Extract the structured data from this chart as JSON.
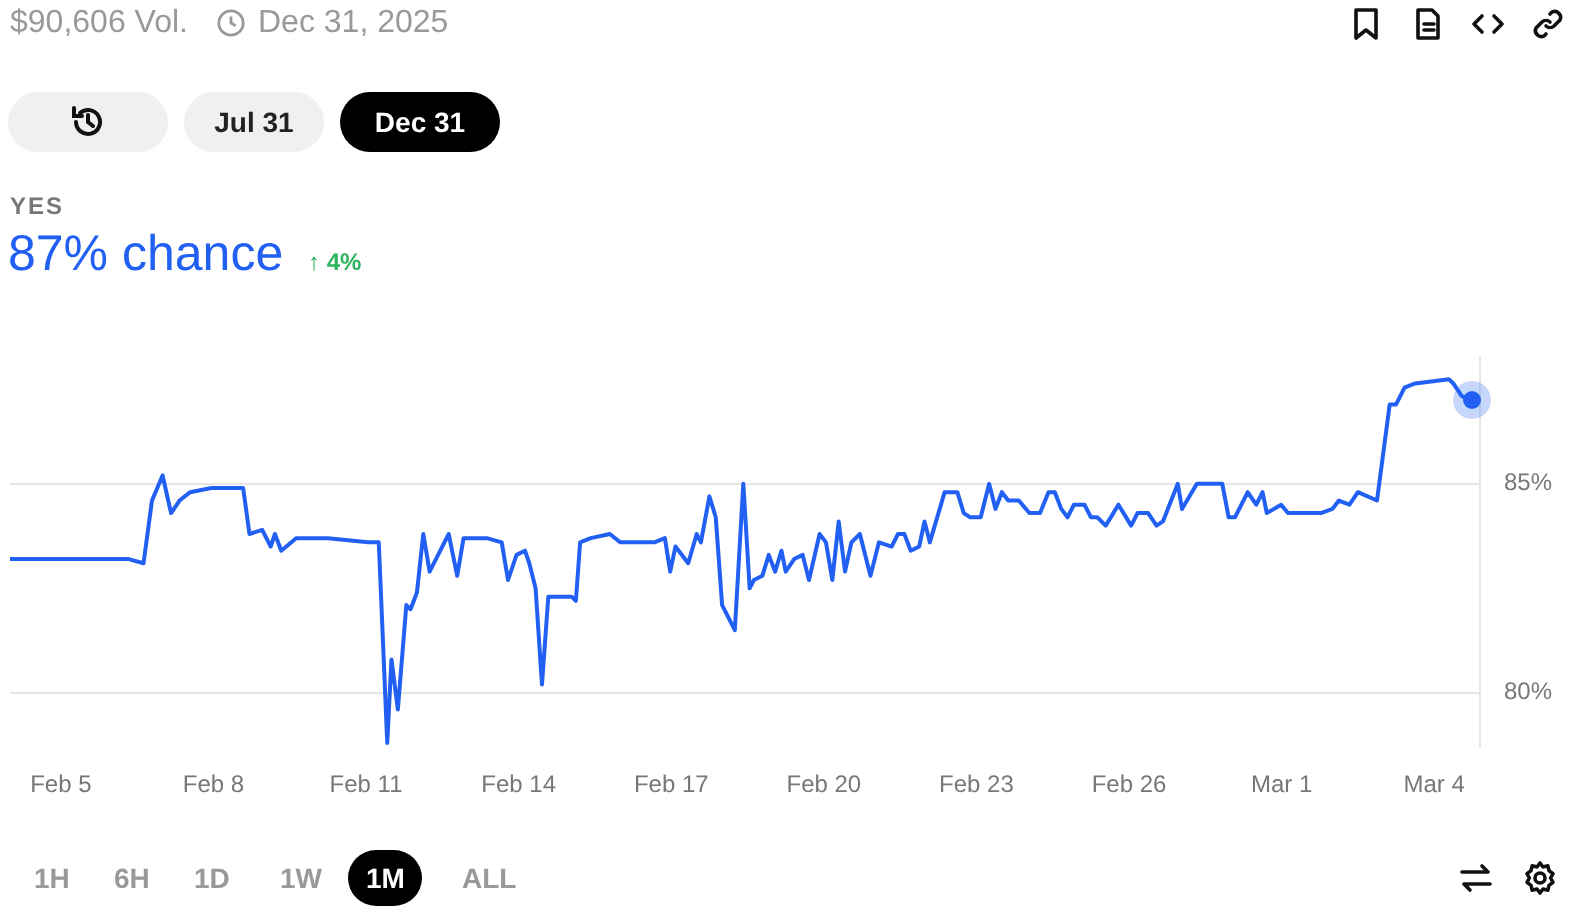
{
  "chart_data": {
    "type": "line",
    "title": "87% chance",
    "subtitle": "YES",
    "annotations": [
      "$90,606 Vol.",
      "Dec 31, 2025",
      "Jul 31",
      "Dec 31",
      "↑ 4%",
      "1H",
      "6H",
      "1D",
      "1W",
      "1M",
      "ALL"
    ],
    "x": [
      "--02-04T00:00",
      "--02-06T08:00",
      "--02-06T15:00",
      "--02-06T19:00",
      "--02-07T00:00",
      "--02-07T04:00",
      "--02-07T08:00",
      "--02-07T13:00",
      "--02-07T23:00",
      "--02-08T14:00",
      "--02-08T17:00",
      "--02-08T23:00",
      "--02-09T03:00",
      "--02-09T05:00",
      "--02-09T08:00",
      "--02-09T15:00",
      "--02-10T06:00",
      "--02-11T01:00",
      "--02-11T06:00",
      "--02-11T10:00",
      "--02-11T12:00",
      "--02-11T15:00",
      "--02-11T19:00",
      "--02-11T21:00",
      "--02-12T00:00",
      "--02-12T03:00",
      "--02-12T06:00",
      "--02-12T10:00",
      "--02-12T15:00",
      "--02-12T19:00",
      "--02-12T22:00",
      "--02-13T09:00",
      "--02-13T16:00",
      "--02-13T19:00",
      "--02-13T23:00",
      "--02-14T03:00",
      "--02-14T05:00",
      "--02-14T08:00",
      "--02-14T11:00",
      "--02-14T14:00",
      "--02-15T01:00",
      "--02-15T03:00",
      "--02-15T05:00",
      "--02-15T10:00",
      "--02-15T19:00",
      "--02-16T00:00",
      "--02-16T07:00",
      "--02-16T16:00",
      "--02-16T21:00",
      "--02-16T23:30",
      "--02-17T02:00",
      "--02-17T08:00",
      "--02-17T12:00",
      "--02-17T14:00",
      "--02-17T18:00",
      "--02-17T21:00",
      "--02-18T00:00",
      "--02-18T06:00",
      "--02-18T10:00",
      "--02-18T13:00",
      "--02-18T15:00",
      "--02-18T19:00",
      "--02-18T22:00",
      "--02-19T01:00",
      "--02-19T04:00",
      "--02-19T06:00",
      "--02-19T10:00",
      "--02-19T14:00",
      "--02-19T17:00",
      "--02-19T22:00",
      "--02-20T01:00",
      "--02-20T04:00",
      "--02-20T07:00",
      "--02-20T10:00",
      "--02-20T13:00",
      "--02-20T17:00",
      "--02-20T19:00",
      "--02-20T22:00",
      "--02-21T02:00",
      "--02-21T08:00",
      "--02-21T11:00",
      "--02-21T14:00",
      "--02-21T17:00",
      "--02-21T21:00",
      "--02-21T23:30",
      "--02-22T02:00",
      "--02-22T09:00",
      "--02-22T12:00",
      "--02-22T15:00",
      "--02-22T18:00",
      "--02-22T21:00",
      "--02-23T02:00",
      "--02-23T06:00",
      "--02-23T09:00",
      "--02-23T12:00",
      "--02-23T15:00",
      "--02-23T20:00",
      "--02-24T01:00",
      "--02-24T06:00",
      "--02-24T10:00",
      "--02-24T13:00",
      "--02-24T16:00",
      "--02-24T19:00",
      "--02-24T22:00",
      "--02-25T03:00",
      "--02-25T06:00",
      "--02-25T09:00",
      "--02-25T13:00",
      "--02-25T19:00",
      "--02-26T01:00",
      "--02-26T04:00",
      "--02-26T09:00",
      "--02-26T13:00",
      "--02-26T16:00",
      "--02-26T23:00",
      "--02-27T01:00",
      "--02-27T08:00",
      "--02-27T13:00",
      "--02-27T20:00",
      "--02-27T23:00",
      "--02-28T02:00",
      "--02-28T08:00",
      "--02-28T12:00",
      "--02-28T15:00",
      "--02-28T17:00",
      "--02-28T23:45",
      "--03-01T03:00",
      "--03-01T09:00",
      "--03-01T18:30",
      "--03-02T00:00",
      "--03-02T03:00",
      "--03-02T08:00",
      "--03-02T12:00",
      "--03-02T21:00",
      "--03-03T03:00",
      "--03-03T06:00",
      "--03-03T10:00",
      "--03-03T15:00",
      "--03-04T07:00",
      "--03-04T09:00",
      "--03-04T13:00",
      "--03-04T18:00"
    ],
    "series": [
      {
        "color": "#2160f3",
        "values": [
          83.2,
          83.2,
          83.1,
          84.6,
          85.2,
          84.3,
          84.6,
          84.8,
          84.9,
          84.9,
          83.8,
          83.9,
          83.5,
          83.8,
          83.4,
          83.7,
          83.7,
          83.6,
          83.6,
          78.8,
          80.8,
          79.6,
          82.1,
          82.0,
          82.4,
          83.8,
          82.9,
          83.3,
          83.8,
          82.8,
          83.7,
          83.7,
          83.6,
          82.7,
          83.3,
          83.4,
          83.1,
          82.5,
          80.2,
          82.3,
          82.3,
          82.2,
          83.6,
          83.7,
          83.8,
          83.6,
          83.6,
          83.6,
          83.7,
          82.9,
          83.5,
          83.1,
          83.8,
          83.6,
          84.7,
          84.2,
          82.1,
          81.5,
          85.0,
          82.5,
          82.7,
          82.8,
          83.3,
          82.9,
          83.4,
          82.9,
          83.2,
          83.3,
          82.7,
          83.8,
          83.6,
          82.7,
          84.1,
          82.9,
          83.6,
          83.8,
          83.4,
          82.8,
          83.6,
          83.5,
          83.8,
          83.8,
          83.4,
          83.5,
          84.1,
          83.6,
          84.8,
          84.8,
          84.8,
          84.3,
          84.2,
          84.2,
          85.0,
          84.4,
          84.8,
          84.6,
          84.6,
          84.3,
          84.3,
          84.8,
          84.8,
          84.4,
          84.2,
          84.5,
          84.5,
          84.2,
          84.2,
          84.0,
          84.5,
          84.0,
          84.3,
          84.3,
          84.0,
          84.1,
          85.0,
          84.4,
          85.0,
          85.0,
          85.0,
          84.2,
          84.2,
          84.8,
          84.5,
          84.8,
          84.3,
          84.5,
          84.3,
          84.3,
          84.3,
          84.4,
          84.6,
          84.5,
          84.8,
          84.6,
          86.9,
          86.9,
          87.3,
          87.4,
          87.5,
          87.4,
          87.1,
          87.0
        ]
      }
    ],
    "xlim": [
      "--02-04T00:00",
      "--03-04T21:36"
    ],
    "xticks": [
      {
        "value": "--02-05",
        "label": "Feb 5"
      },
      {
        "value": "--02-08",
        "label": "Feb 8"
      },
      {
        "value": "--02-11",
        "label": "Feb 11"
      },
      {
        "value": "--02-14",
        "label": "Feb 14"
      },
      {
        "value": "--02-17",
        "label": "Feb 17"
      },
      {
        "value": "--02-20",
        "label": "Feb 20"
      },
      {
        "value": "--02-23",
        "label": "Feb 23"
      },
      {
        "value": "--02-26",
        "label": "Feb 26"
      },
      {
        "value": "--03-01",
        "label": "Mar 1"
      },
      {
        "value": "--03-04",
        "label": "Mar 4"
      }
    ],
    "ylim": [
      78.7,
      88
    ],
    "yticks": [
      {
        "value": 80,
        "label": "80%"
      },
      {
        "value": 85,
        "label": "85%"
      }
    ],
    "grid": "y",
    "legend": false,
    "line_style": "solid"
  }
}
